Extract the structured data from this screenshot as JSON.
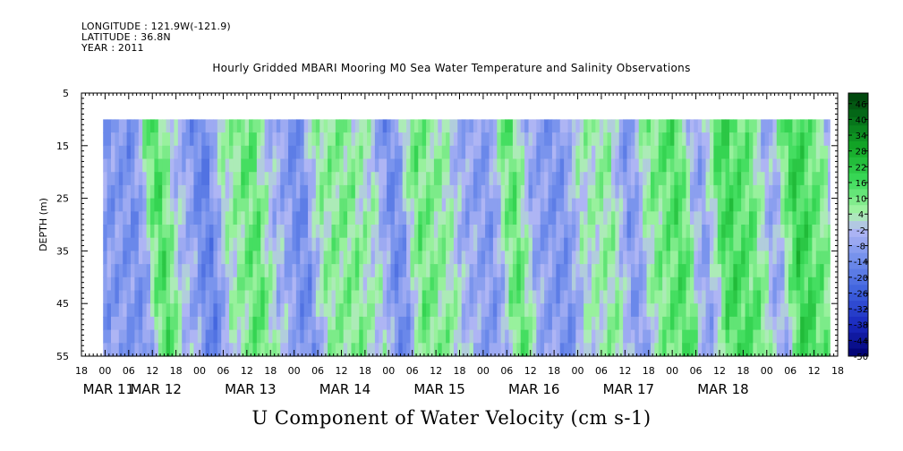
{
  "meta": {
    "longitude": "LONGITUDE : 121.9W(-121.9)",
    "latitude": "LATITUDE : 36.8N",
    "year": "YEAR : 2011"
  },
  "chart_data": {
    "type": "heatmap",
    "title": "Hourly Gridded MBARI Mooring M0 Sea Water Temperature and Salinity Observations",
    "xlabel": "U Component of Water Velocity (cm s-1)",
    "ylabel": "DEPTH (m)",
    "ylim": [
      55,
      5
    ],
    "y_ticks": [
      5,
      15,
      25,
      35,
      45,
      55
    ],
    "x_range_hours": [
      -6,
      186
    ],
    "x_tick_labels": [
      "18",
      "00",
      "06",
      "12",
      "18",
      "00",
      "06",
      "12",
      "18",
      "00",
      "06",
      "12",
      "18",
      "00",
      "06",
      "12",
      "18",
      "00",
      "06",
      "12",
      "18",
      "00",
      "06",
      "12",
      "18",
      "00",
      "06",
      "12",
      "18",
      "00",
      "06",
      "12",
      "18"
    ],
    "x_date_labels": [
      {
        "label": "MAR 11",
        "hour": 0
      },
      {
        "label": "MAR 12",
        "hour": 12
      },
      {
        "label": "MAR 13",
        "hour": 36
      },
      {
        "label": "MAR 14",
        "hour": 60
      },
      {
        "label": "MAR 15",
        "hour": 84
      },
      {
        "label": "MAR 16",
        "hour": 108
      },
      {
        "label": "MAR 17",
        "hour": 132
      },
      {
        "label": "MAR 18",
        "hour": 156
      }
    ],
    "data_extent": {
      "hours": [
        -0.5,
        184
      ],
      "depth": [
        10,
        55
      ]
    },
    "colorbar_labels": [
      46,
      40,
      34,
      28,
      22,
      16,
      10,
      4,
      -2,
      -8,
      -14,
      -20,
      -26,
      -32,
      -38,
      -44,
      -50
    ],
    "colorbar_range": [
      -50,
      50
    ],
    "colorbar_step": 3,
    "bands": [
      {
        "hour": 1,
        "value": -10
      },
      {
        "hour": 6,
        "value": -12
      },
      {
        "hour": 12,
        "value": 14
      },
      {
        "hour": 18,
        "value": -4
      },
      {
        "hour": 24,
        "value": -16
      },
      {
        "hour": 30,
        "value": 4
      },
      {
        "hour": 36,
        "value": 12
      },
      {
        "hour": 42,
        "value": -4
      },
      {
        "hour": 48,
        "value": -14
      },
      {
        "hour": 54,
        "value": 6
      },
      {
        "hour": 60,
        "value": 8
      },
      {
        "hour": 66,
        "value": 2
      },
      {
        "hour": 72,
        "value": -14
      },
      {
        "hour": 78,
        "value": 10
      },
      {
        "hour": 84,
        "value": 6
      },
      {
        "hour": 90,
        "value": -6
      },
      {
        "hour": 96,
        "value": -10
      },
      {
        "hour": 102,
        "value": 12
      },
      {
        "hour": 108,
        "value": -8
      },
      {
        "hour": 114,
        "value": -12
      },
      {
        "hour": 120,
        "value": 2
      },
      {
        "hour": 126,
        "value": 6
      },
      {
        "hour": 132,
        "value": -10
      },
      {
        "hour": 138,
        "value": 8
      },
      {
        "hour": 144,
        "value": 14
      },
      {
        "hour": 150,
        "value": -8
      },
      {
        "hour": 156,
        "value": 16
      },
      {
        "hour": 162,
        "value": 12
      },
      {
        "hour": 168,
        "value": -6
      },
      {
        "hour": 174,
        "value": 18
      },
      {
        "hour": 180,
        "value": 10
      },
      {
        "hour": 184,
        "value": -4
      }
    ]
  }
}
